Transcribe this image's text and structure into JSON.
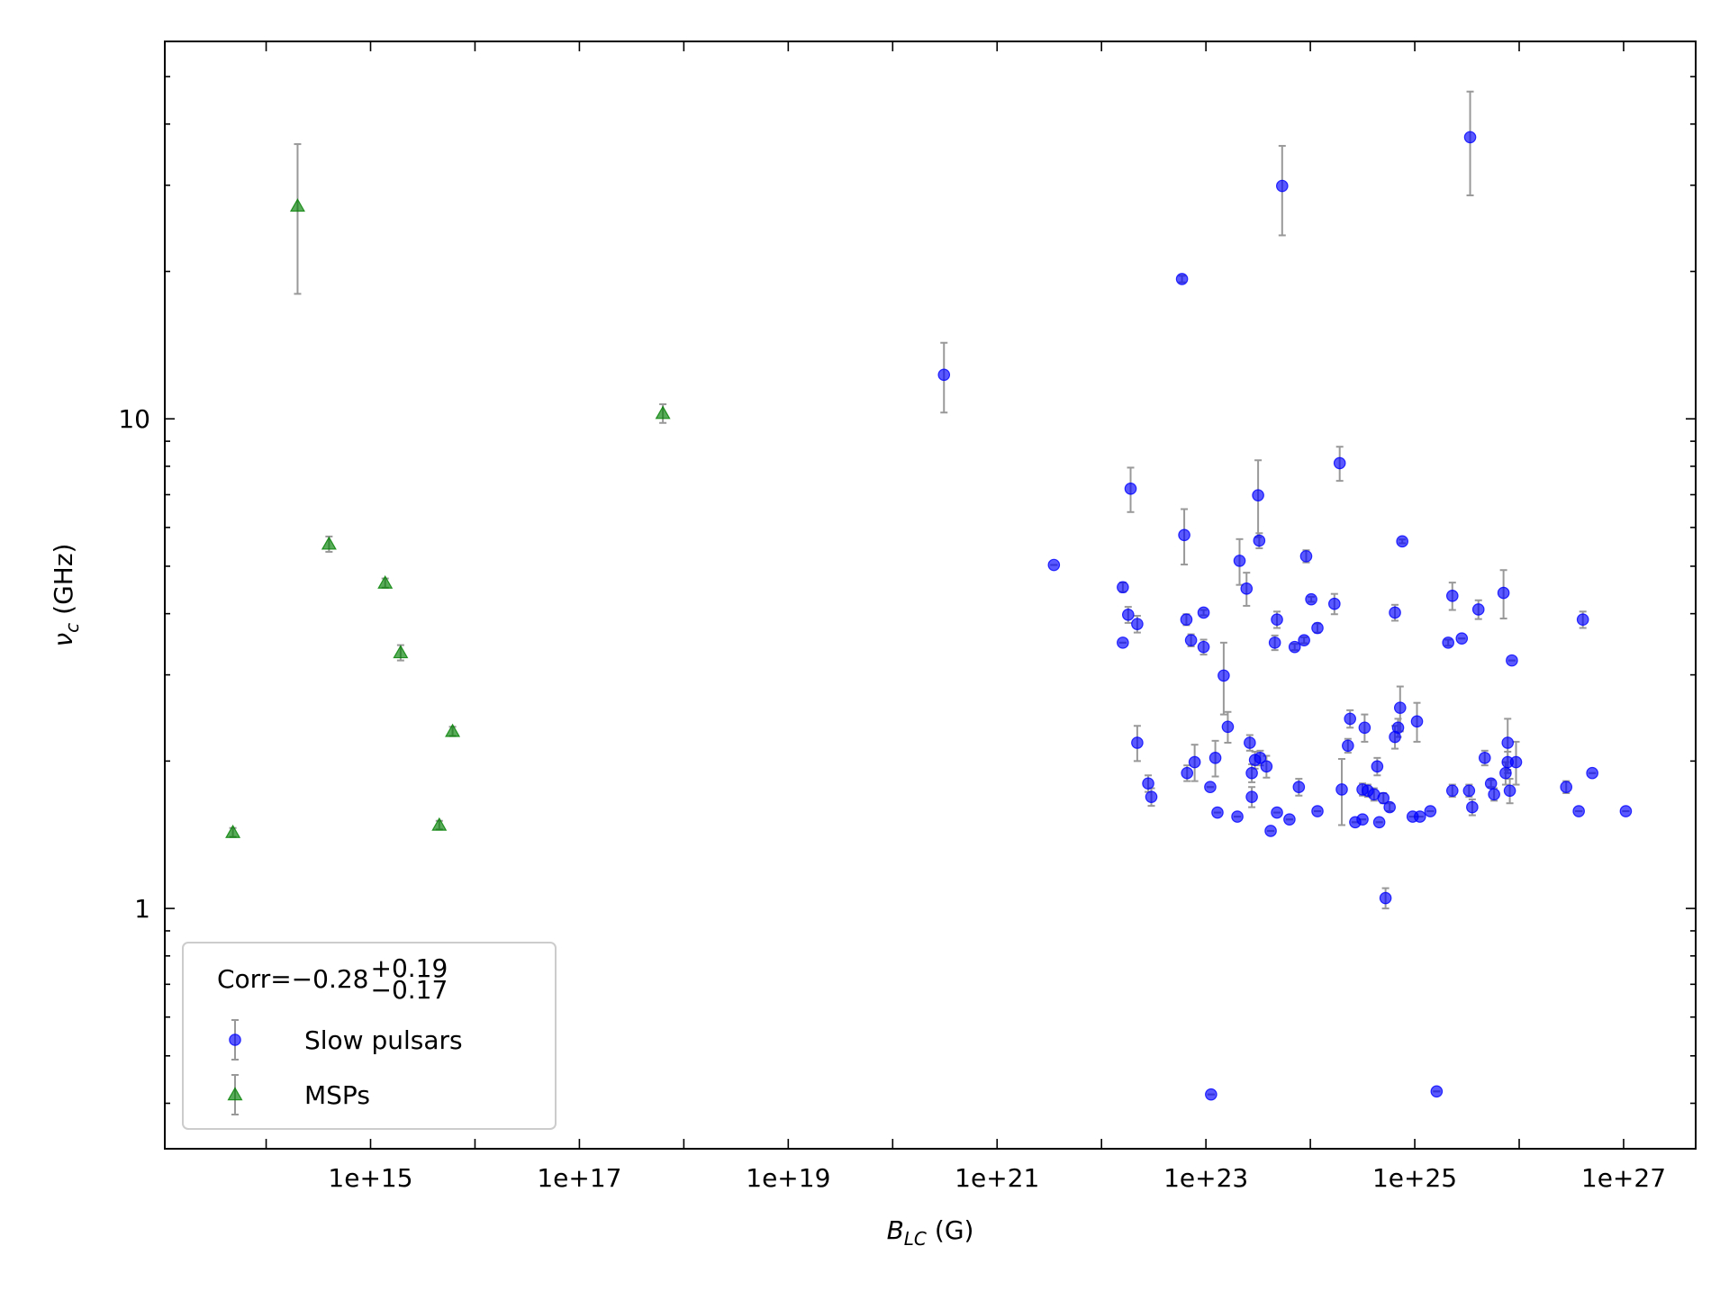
{
  "chart_data": {
    "type": "scatter",
    "xlabel": {
      "symbol": "B",
      "subscript": "LC",
      "unit": "(G)"
    },
    "ylabel": {
      "symbol": "ν",
      "subscript": "c",
      "unit": "(GHz)"
    },
    "xscale": "log",
    "yscale": "log",
    "xlim": [
      10700000000000.0,
      4.9e+27
    ],
    "ylim": [
      0.323,
      59
    ],
    "xticks": [
      {
        "value": 1000000000000000.0,
        "label": "1e+15"
      },
      {
        "value": 1e+17,
        "label": "1e+17"
      },
      {
        "value": 1e+19,
        "label": "1e+19"
      },
      {
        "value": 1e+21,
        "label": "1e+21"
      },
      {
        "value": 1e+23,
        "label": "1e+23"
      },
      {
        "value": 1e+25,
        "label": "1e+25"
      },
      {
        "value": 1e+27,
        "label": "1e+27"
      }
    ],
    "xminorticks": [
      100000000000000.0,
      1e+16,
      1e+18,
      1e+20,
      1e+22,
      1e+24,
      1e+26
    ],
    "yticks": [
      1,
      10
    ],
    "yminorticks": [
      0.4,
      0.5,
      0.6,
      0.7,
      0.8,
      0.9,
      2,
      3,
      4,
      5,
      6,
      7,
      8,
      9,
      20,
      30,
      40,
      50
    ],
    "errorbar_color": "#999999",
    "legend": {
      "loc": "lower left",
      "title": {
        "text": "Corr=−0.28",
        "sup": "+0.19",
        "sub": "−0.17"
      }
    },
    "series": [
      {
        "name": "Slow pulsars",
        "color": "#0000ff",
        "marker": "circle",
        "x": [
          3.1e+20,
          3.5e+21,
          1.6e+22,
          1.6e+22,
          1.8e+22,
          1.9e+22,
          2.2e+22,
          2.2e+22,
          2.8e+22,
          3e+22,
          5.9e+22,
          6.2e+22,
          6.5e+22,
          6.6e+22,
          7.2e+22,
          7.8e+22,
          9.5e+22,
          9.5e+22,
          1.1e+23,
          1.12e+23,
          1.23e+23,
          1.29e+23,
          1.48e+23,
          1.62e+23,
          2e+23,
          2.1e+23,
          2.45e+23,
          2.63e+23,
          2.75e+23,
          2.75e+23,
          2.95e+23,
          3.16e+23,
          3.24e+23,
          3.31e+23,
          3.8e+23,
          4.17e+23,
          4.57e+23,
          4.79e+23,
          4.79e+23,
          5.37e+23,
          6.31e+23,
          7.08e+23,
          7.76e+23,
          8.71e+23,
          9.12e+23,
          1.02e+24,
          1.17e+24,
          1.17e+24,
          1.7e+24,
          1.91e+24,
          2e+24,
          2.29e+24,
          2.4e+24,
          2.69e+24,
          3.16e+24,
          3.16e+24,
          3.31e+24,
          3.55e+24,
          4.07e+24,
          4.37e+24,
          4.57e+24,
          5.01e+24,
          5.25e+24,
          5.75e+24,
          6.46e+24,
          6.46e+24,
          6.92e+24,
          7.24e+24,
          7.59e+24,
          9.55e+24,
          1.05e+25,
          1.12e+25,
          1.41e+25,
          1.62e+25,
          2.09e+25,
          2.29e+25,
          2.29e+25,
          2.82e+25,
          3.31e+25,
          3.39e+25,
          3.55e+25,
          4.07e+25,
          4.68e+25,
          5.37e+25,
          5.75e+25,
          7.08e+25,
          7.41e+25,
          7.76e+25,
          7.76e+25,
          8.13e+25,
          8.51e+25,
          9.33e+25,
          2.82e+26,
          3.72e+26,
          4.07e+26,
          5.01e+26,
          1.05e+27
        ],
        "values": [
          12.3,
          5.03,
          4.53,
          3.49,
          3.98,
          7.2,
          3.81,
          2.18,
          1.8,
          1.69,
          19.3,
          5.79,
          3.89,
          1.89,
          3.53,
          1.99,
          4.02,
          3.42,
          1.77,
          0.417,
          2.03,
          1.57,
          2.99,
          2.35,
          1.54,
          5.13,
          4.5,
          2.18,
          1.89,
          1.69,
          2.01,
          6.98,
          5.64,
          2.03,
          1.95,
          1.44,
          3.49,
          3.89,
          1.57,
          29.9,
          1.52,
          3.42,
          1.77,
          3.53,
          5.24,
          4.28,
          3.74,
          1.58,
          4.19,
          8.12,
          1.75,
          2.15,
          2.44,
          1.5,
          1.75,
          1.52,
          2.34,
          1.74,
          1.71,
          1.95,
          1.5,
          1.68,
          1.05,
          1.61,
          2.24,
          4.02,
          2.34,
          2.57,
          5.62,
          1.54,
          2.41,
          1.54,
          1.58,
          0.423,
          3.49,
          1.74,
          4.35,
          3.56,
          1.74,
          37.6,
          1.61,
          4.08,
          2.03,
          1.8,
          1.71,
          4.41,
          1.89,
          2.18,
          1.99,
          1.74,
          3.21,
          1.99,
          1.77,
          1.58,
          3.89,
          1.89,
          1.58
        ],
        "yerr": [
          2.0,
          0,
          0.1,
          0,
          0.15,
          0.75,
          0.15,
          0.18,
          0.07,
          0.07,
          0.3,
          0.75,
          0.1,
          0.07,
          0.1,
          0.17,
          0.05,
          0.12,
          0,
          0,
          0.17,
          0,
          0.5,
          0.17,
          0,
          0.55,
          0.35,
          0.08,
          0.08,
          0.08,
          0.08,
          1.25,
          0.2,
          0.07,
          0.1,
          0,
          0.12,
          0.15,
          0,
          6.2,
          0,
          0.05,
          0.07,
          0.05,
          0.15,
          0.05,
          0.08,
          0,
          0.2,
          0.65,
          0.27,
          0.07,
          0.1,
          0,
          0.05,
          0,
          0.15,
          0.05,
          0.05,
          0.08,
          0,
          0.04,
          0.05,
          0.03,
          0.12,
          0.15,
          0.1,
          0.27,
          0.05,
          0,
          0.22,
          0,
          0,
          0,
          0.05,
          0.05,
          0.28,
          0,
          0.05,
          9,
          0.06,
          0.18,
          0.07,
          0.03,
          0.05,
          0.5,
          0.1,
          0.26,
          0.1,
          0.1,
          0,
          0.2,
          0.05,
          0,
          0.15,
          0,
          0
        ]
      },
      {
        "name": "MSPs",
        "color": "#008000",
        "marker": "triangle",
        "x": [
          48000000000000.0,
          200000000000000.0,
          400000000000000.0,
          1380000000000000.0,
          1940000000000000.0,
          4550000000000000.0,
          6100000000000000.0,
          6.3e+17
        ],
        "values": [
          1.43,
          27.2,
          5.55,
          4.62,
          3.33,
          1.48,
          2.3,
          10.26
        ],
        "yerr": [
          0.03,
          9.2,
          0.2,
          0.1,
          0.12,
          0.03,
          0.05,
          0.45
        ]
      }
    ]
  }
}
